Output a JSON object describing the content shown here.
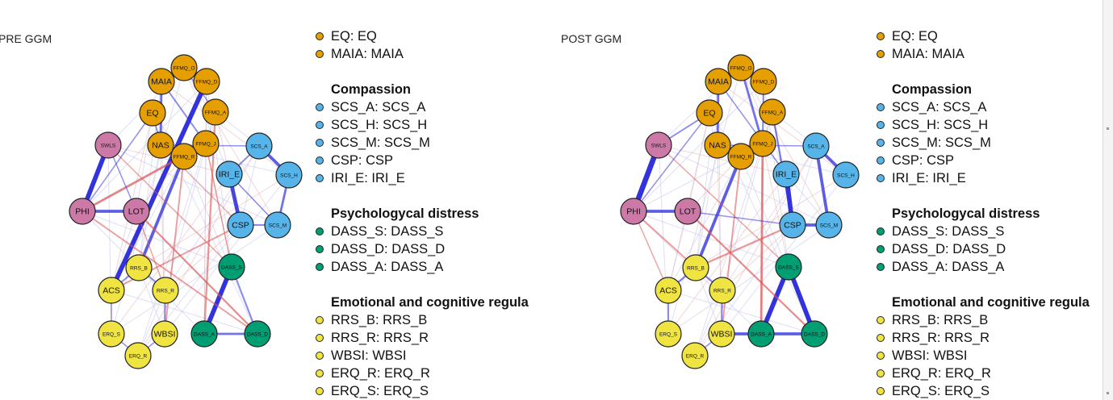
{
  "colors": {
    "affect": "#E69F00",
    "compassion": "#56B4E9",
    "distress": "#009E73",
    "regulation": "#F0E442",
    "wellbeing": "#CC79A7",
    "positive_edge": "#3333dd",
    "negative_edge": "#dd5555"
  },
  "panels": [
    {
      "title": "PRE GGM",
      "legend": {
        "top_items": [
          {
            "label": "EQ: EQ",
            "color_key": "affect"
          },
          {
            "label": "MAIA: MAIA",
            "color_key": "affect"
          }
        ],
        "groups": [
          {
            "title": "Compassion",
            "items": [
              {
                "label": "SCS_A: SCS_A",
                "color_key": "compassion"
              },
              {
                "label": "SCS_H: SCS_H",
                "color_key": "compassion"
              },
              {
                "label": "SCS_M: SCS_M",
                "color_key": "compassion"
              },
              {
                "label": "CSP: CSP",
                "color_key": "compassion"
              },
              {
                "label": "IRI_E: IRI_E",
                "color_key": "compassion"
              }
            ]
          },
          {
            "title": "Psychologycal distress",
            "items": [
              {
                "label": "DASS_S: DASS_S",
                "color_key": "distress"
              },
              {
                "label": "DASS_D: DASS_D",
                "color_key": "distress"
              },
              {
                "label": "DASS_A: DASS_A",
                "color_key": "distress"
              }
            ]
          },
          {
            "title": "Emotional and cognitive regula",
            "items": [
              {
                "label": "RRS_B: RRS_B",
                "color_key": "regulation"
              },
              {
                "label": "RRS_R: RRS_R",
                "color_key": "regulation"
              },
              {
                "label": "WBSI: WBSI",
                "color_key": "regulation"
              },
              {
                "label": "ERQ_R: ERQ_R",
                "color_key": "regulation"
              },
              {
                "label": "ERQ_S: ERQ_S",
                "color_key": "regulation"
              }
            ]
          }
        ]
      }
    },
    {
      "title": "POST GGM",
      "legend": {
        "top_items": [
          {
            "label": "EQ: EQ",
            "color_key": "affect"
          },
          {
            "label": "MAIA: MAIA",
            "color_key": "affect"
          }
        ],
        "groups": [
          {
            "title": "Compassion",
            "items": [
              {
                "label": "SCS_A: SCS_A",
                "color_key": "compassion"
              },
              {
                "label": "SCS_H: SCS_H",
                "color_key": "compassion"
              },
              {
                "label": "SCS_M: SCS_M",
                "color_key": "compassion"
              },
              {
                "label": "CSP: CSP",
                "color_key": "compassion"
              },
              {
                "label": "IRI_E: IRI_E",
                "color_key": "compassion"
              }
            ]
          },
          {
            "title": "Psychologycal distress",
            "items": [
              {
                "label": "DASS_S: DASS_S",
                "color_key": "distress"
              },
              {
                "label": "DASS_D: DASS_D",
                "color_key": "distress"
              },
              {
                "label": "DASS_A: DASS_A",
                "color_key": "distress"
              }
            ]
          },
          {
            "title": "Emotional and cognitive regula",
            "items": [
              {
                "label": "RRS_B: RRS_B",
                "color_key": "regulation"
              },
              {
                "label": "RRS_R: RRS_R",
                "color_key": "regulation"
              },
              {
                "label": "WBSI: WBSI",
                "color_key": "regulation"
              },
              {
                "label": "ERQ_R: ERQ_R",
                "color_key": "regulation"
              },
              {
                "label": "ERQ_S: ERQ_S",
                "color_key": "regulation"
              }
            ]
          }
        ]
      }
    }
  ],
  "nodes": [
    {
      "id": "FFMQ_O",
      "group": "affect",
      "small": true
    },
    {
      "id": "MAIA",
      "group": "affect"
    },
    {
      "id": "FFMQ_D",
      "group": "affect",
      "small": true
    },
    {
      "id": "EQ",
      "group": "affect"
    },
    {
      "id": "FFMQ_A",
      "group": "affect",
      "small": true
    },
    {
      "id": "SWLS",
      "group": "wellbeing",
      "small": true
    },
    {
      "id": "NAS",
      "group": "affect"
    },
    {
      "id": "FFMQ_J",
      "group": "affect",
      "small": true
    },
    {
      "id": "FFMQ_R",
      "group": "affect",
      "small": true
    },
    {
      "id": "SCS_A",
      "group": "compassion",
      "small": true
    },
    {
      "id": "IRI_E",
      "group": "compassion"
    },
    {
      "id": "SCS_H",
      "group": "compassion",
      "small": true
    },
    {
      "id": "PHI",
      "group": "wellbeing"
    },
    {
      "id": "LOT",
      "group": "wellbeing"
    },
    {
      "id": "CSP",
      "group": "compassion"
    },
    {
      "id": "SCS_M",
      "group": "compassion",
      "small": true
    },
    {
      "id": "RRS_B",
      "group": "regulation",
      "small": true
    },
    {
      "id": "DASS_S",
      "group": "distress",
      "small": true
    },
    {
      "id": "ACS",
      "group": "regulation"
    },
    {
      "id": "RRS_R",
      "group": "regulation",
      "small": true
    },
    {
      "id": "ERQ_S",
      "group": "regulation",
      "small": true
    },
    {
      "id": "WBSI",
      "group": "regulation"
    },
    {
      "id": "DASS_A",
      "group": "distress",
      "small": true
    },
    {
      "id": "DASS_D",
      "group": "distress",
      "small": true
    },
    {
      "id": "ERQ_R",
      "group": "regulation",
      "small": true
    }
  ],
  "edges_pre": [
    [
      "SWLS",
      "PHI",
      "pos",
      3
    ],
    [
      "PHI",
      "LOT",
      "pos",
      2
    ],
    [
      "FFMQ_D",
      "ACS",
      "pos",
      3
    ],
    [
      "FFMQ_R",
      "RRS_B",
      "pos",
      2
    ],
    [
      "MAIA",
      "NAS",
      "pos",
      1.5
    ],
    [
      "EQ",
      "NAS",
      "pos",
      1
    ],
    [
      "SCS_A",
      "IRI_E",
      "pos",
      1
    ],
    [
      "IRI_E",
      "CSP",
      "pos",
      2.5
    ],
    [
      "SCS_A",
      "SCS_H",
      "pos",
      2
    ],
    [
      "SCS_H",
      "SCS_M",
      "pos",
      1.5
    ],
    [
      "CSP",
      "SCS_M",
      "pos",
      1
    ],
    [
      "DASS_S",
      "DASS_A",
      "pos",
      3
    ],
    [
      "DASS_A",
      "DASS_D",
      "pos",
      1.5
    ],
    [
      "DASS_S",
      "DASS_D",
      "pos",
      1
    ],
    [
      "RRS_B",
      "RRS_R",
      "pos",
      1
    ],
    [
      "ACS",
      "RRS_B",
      "pos",
      1
    ],
    [
      "FFMQ_J",
      "PHI",
      "neg",
      1.5
    ],
    [
      "FFMQ_A",
      "DASS_A",
      "neg",
      1.2
    ],
    [
      "LOT",
      "DASS_D",
      "neg",
      1.2
    ],
    [
      "PHI",
      "DASS_D",
      "neg",
      1
    ],
    [
      "CSP",
      "ACS",
      "neg",
      1
    ],
    [
      "FFMQ_R",
      "WBSI",
      "neg",
      1
    ],
    [
      "SWLS",
      "DASS_S",
      "neg",
      0.8
    ],
    [
      "LOT",
      "RRS_R",
      "neg",
      0.8
    ],
    [
      "NAS",
      "SCS_A",
      "pos",
      0.8
    ],
    [
      "FFMQ_O",
      "FFMQ_A",
      "pos",
      0.8
    ],
    [
      "MAIA",
      "FFMQ_J",
      "pos",
      1
    ],
    [
      "SWLS",
      "LOT",
      "pos",
      0.8
    ],
    [
      "ACS",
      "ERQ_S",
      "pos",
      0.8
    ],
    [
      "WBSI",
      "RRS_R",
      "pos",
      1
    ],
    [
      "ERQ_R",
      "WBSI",
      "pos",
      0.8
    ],
    [
      "ERQ_S",
      "ERQ_R",
      "pos",
      0.8
    ],
    [
      "IRI_E",
      "SCS_M",
      "pos",
      0.8
    ],
    [
      "EQ",
      "PHI",
      "pos",
      0.8
    ],
    [
      "NAS",
      "CSP",
      "neg",
      0.7
    ],
    [
      "FFMQ_J",
      "DASS_S",
      "neg",
      0.8
    ]
  ],
  "edges_post": [
    [
      "SWLS",
      "PHI",
      "pos",
      3.5
    ],
    [
      "PHI",
      "LOT",
      "pos",
      2
    ],
    [
      "FFMQ_R",
      "RRS_B",
      "pos",
      2
    ],
    [
      "MAIA",
      "NAS",
      "pos",
      1.5
    ],
    [
      "IRI_E",
      "CSP",
      "pos",
      3
    ],
    [
      "SCS_A",
      "SCS_H",
      "pos",
      2
    ],
    [
      "SCS_A",
      "SCS_M",
      "pos",
      2
    ],
    [
      "CSP",
      "SCS_M",
      "pos",
      2
    ],
    [
      "DASS_S",
      "DASS_A",
      "pos",
      3
    ],
    [
      "DASS_S",
      "DASS_D",
      "pos",
      3
    ],
    [
      "DASS_A",
      "DASS_D",
      "pos",
      2
    ],
    [
      "WBSI",
      "DASS_A",
      "pos",
      2
    ],
    [
      "RRS_B",
      "RRS_R",
      "pos",
      1.2
    ],
    [
      "ACS",
      "RRS_B",
      "pos",
      1.2
    ],
    [
      "FFMQ_O",
      "FFMQ_J",
      "pos",
      1.5
    ],
    [
      "FFMQ_D",
      "FFMQ_J",
      "pos",
      1
    ],
    [
      "EQ",
      "SWLS",
      "pos",
      1
    ],
    [
      "FFMQ_A",
      "CSP",
      "pos",
      1.2
    ],
    [
      "LOT",
      "DASS_D",
      "neg",
      1.2
    ],
    [
      "PHI",
      "RRS_B",
      "neg",
      1
    ],
    [
      "FFMQ_J",
      "DASS_A",
      "neg",
      1.5
    ],
    [
      "CSP",
      "RRS_B",
      "neg",
      1.2
    ],
    [
      "FFMQ_R",
      "WBSI",
      "neg",
      1
    ],
    [
      "SWLS",
      "DASS_S",
      "neg",
      0.8
    ],
    [
      "ACS",
      "ERQ_S",
      "pos",
      1
    ],
    [
      "WBSI",
      "RRS_R",
      "pos",
      1
    ],
    [
      "ERQ_R",
      "WBSI",
      "pos",
      0.8
    ],
    [
      "PHI",
      "ACS",
      "neg",
      0.8
    ],
    [
      "NAS",
      "SCS_A",
      "pos",
      0.8
    ],
    [
      "LOT",
      "CSP",
      "pos",
      0.8
    ],
    [
      "MAIA",
      "IRI_E",
      "pos",
      0.8
    ],
    [
      "EQ",
      "PHI",
      "pos",
      0.8
    ]
  ]
}
